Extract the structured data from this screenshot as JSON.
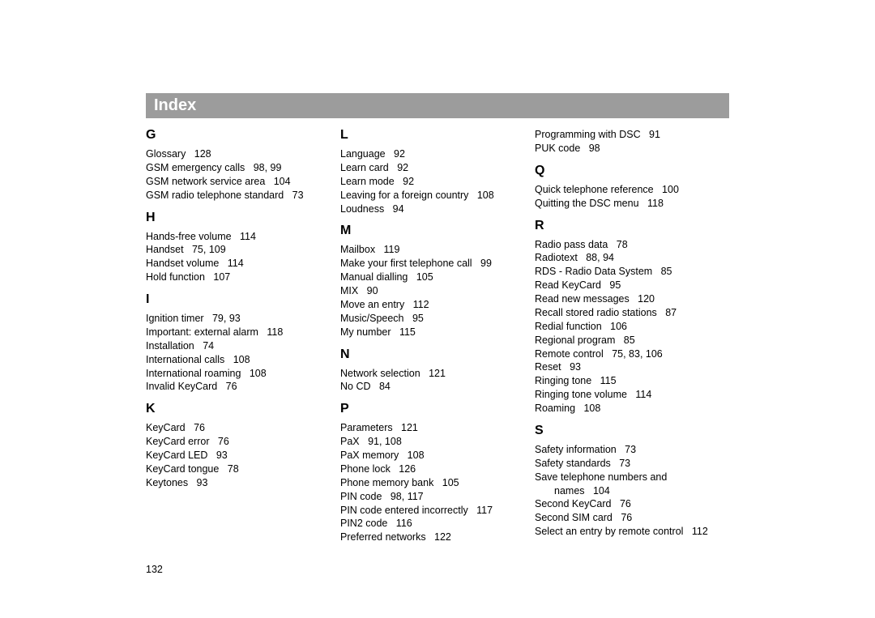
{
  "title": "Index",
  "pageNumber": "132",
  "columns": [
    {
      "sections": [
        {
          "letter": "G",
          "first": true,
          "entries": [
            {
              "text": "Glossary",
              "pages": "128"
            },
            {
              "text": "GSM emergency calls",
              "pages": "98, 99"
            },
            {
              "text": "GSM network service area",
              "pages": "104"
            },
            {
              "text": "GSM radio telephone standard",
              "pages": "73"
            }
          ]
        },
        {
          "letter": "H",
          "entries": [
            {
              "text": "Hands-free volume",
              "pages": "114"
            },
            {
              "text": "Handset",
              "pages": "75, 109"
            },
            {
              "text": "Handset volume",
              "pages": "114"
            },
            {
              "text": "Hold function",
              "pages": "107"
            }
          ]
        },
        {
          "letter": "I",
          "entries": [
            {
              "text": "Ignition timer",
              "pages": "79, 93"
            },
            {
              "text": "Important: external alarm",
              "pages": "118"
            },
            {
              "text": "Installation",
              "pages": "74"
            },
            {
              "text": "International calls",
              "pages": "108"
            },
            {
              "text": "International roaming",
              "pages": "108"
            },
            {
              "text": "Invalid KeyCard",
              "pages": "76"
            }
          ]
        },
        {
          "letter": "K",
          "entries": [
            {
              "text": "KeyCard",
              "pages": "76"
            },
            {
              "text": "KeyCard error",
              "pages": "76"
            },
            {
              "text": "KeyCard LED",
              "pages": "93"
            },
            {
              "text": "KeyCard tongue",
              "pages": "78"
            },
            {
              "text": "Keytones",
              "pages": "93"
            }
          ]
        }
      ]
    },
    {
      "sections": [
        {
          "letter": "L",
          "first": true,
          "entries": [
            {
              "text": "Language",
              "pages": "92"
            },
            {
              "text": "Learn card",
              "pages": "92"
            },
            {
              "text": "Learn mode",
              "pages": "92"
            },
            {
              "text": "Leaving for a foreign country",
              "pages": "108"
            },
            {
              "text": "Loudness",
              "pages": "94"
            }
          ]
        },
        {
          "letter": "M",
          "entries": [
            {
              "text": "Mailbox",
              "pages": "119"
            },
            {
              "text": "Make your first telephone call",
              "pages": "99"
            },
            {
              "text": "Manual dialling",
              "pages": "105"
            },
            {
              "text": "MIX",
              "pages": "90"
            },
            {
              "text": "Move an entry",
              "pages": "112"
            },
            {
              "text": "Music/Speech",
              "pages": "95"
            },
            {
              "text": "My number",
              "pages": "115"
            }
          ]
        },
        {
          "letter": "N",
          "entries": [
            {
              "text": "Network selection",
              "pages": "121"
            },
            {
              "text": "No CD",
              "pages": "84"
            }
          ]
        },
        {
          "letter": "P",
          "entries": [
            {
              "text": "Parameters",
              "pages": "121"
            },
            {
              "text": "PaX",
              "pages": "91, 108"
            },
            {
              "text": "PaX memory",
              "pages": "108"
            },
            {
              "text": "Phone lock",
              "pages": "126"
            },
            {
              "text": "Phone memory bank",
              "pages": "105"
            },
            {
              "text": "PIN code",
              "pages": "98, 117"
            },
            {
              "text": "PIN code entered incorrectly",
              "pages": "117"
            },
            {
              "text": "PIN2 code",
              "pages": "116"
            },
            {
              "text": "Preferred networks",
              "pages": "122"
            }
          ]
        }
      ]
    },
    {
      "sections": [
        {
          "letter": "",
          "first": true,
          "entries": [
            {
              "text": "Programming with DSC",
              "pages": "91"
            },
            {
              "text": "PUK code",
              "pages": "98"
            }
          ]
        },
        {
          "letter": "Q",
          "entries": [
            {
              "text": "Quick telephone reference",
              "pages": "100"
            },
            {
              "text": "Quitting the DSC menu",
              "pages": "118"
            }
          ]
        },
        {
          "letter": "R",
          "entries": [
            {
              "text": "Radio pass data",
              "pages": "78"
            },
            {
              "text": "Radiotext",
              "pages": "88, 94"
            },
            {
              "text": "RDS - Radio Data System",
              "pages": "85"
            },
            {
              "text": "Read KeyCard",
              "pages": "95"
            },
            {
              "text": "Read new messages",
              "pages": "120"
            },
            {
              "text": "Recall stored radio stations",
              "pages": "87"
            },
            {
              "text": "Redial function",
              "pages": "106"
            },
            {
              "text": "Regional program",
              "pages": "85"
            },
            {
              "text": "Remote control",
              "pages": "75, 83, 106"
            },
            {
              "text": "Reset",
              "pages": "93"
            },
            {
              "text": "Ringing tone",
              "pages": "115"
            },
            {
              "text": "Ringing tone volume",
              "pages": "114"
            },
            {
              "text": "Roaming",
              "pages": "108"
            }
          ]
        },
        {
          "letter": "S",
          "entries": [
            {
              "text": "Safety information",
              "pages": "73"
            },
            {
              "text": "Safety standards",
              "pages": "73"
            },
            {
              "text": "Save telephone numbers and",
              "pages": ""
            },
            {
              "text": "names",
              "pages": "104",
              "cont": true
            },
            {
              "text": "Second KeyCard",
              "pages": "76"
            },
            {
              "text": "Second SIM card",
              "pages": "76"
            },
            {
              "text": "Select an entry by remote control",
              "pages": "112"
            }
          ]
        }
      ]
    }
  ]
}
